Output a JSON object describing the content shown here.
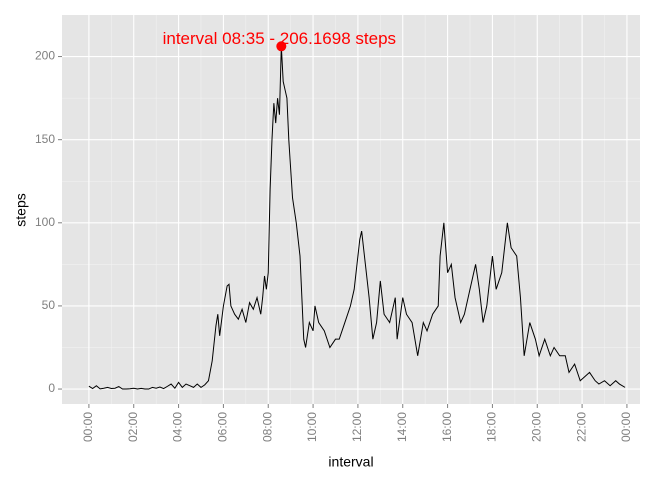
{
  "chart_data": {
    "type": "line",
    "x_label": "interval",
    "y_label": "steps",
    "x": [
      0,
      10,
      20,
      30,
      40,
      50,
      60,
      70,
      80,
      90,
      100,
      110,
      120,
      130,
      140,
      150,
      160,
      170,
      180,
      190,
      200,
      210,
      220,
      230,
      240,
      250,
      260,
      270,
      280,
      290,
      300,
      310,
      320,
      330,
      340,
      345,
      350,
      360,
      370,
      375,
      380,
      390,
      400,
      410,
      420,
      430,
      440,
      450,
      460,
      465,
      470,
      475,
      480,
      485,
      490,
      495,
      500,
      505,
      510,
      515,
      520,
      525,
      530,
      535,
      545,
      555,
      565,
      575,
      580,
      590,
      600,
      605,
      615,
      630,
      645,
      660,
      670,
      685,
      700,
      710,
      725,
      730,
      740,
      750,
      760,
      770,
      780,
      790,
      805,
      820,
      825,
      840,
      850,
      865,
      880,
      895,
      905,
      920,
      935,
      940,
      950,
      960,
      970,
      980,
      995,
      1005,
      1020,
      1035,
      1045,
      1055,
      1065,
      1080,
      1090,
      1105,
      1120,
      1130,
      1145,
      1155,
      1165,
      1180,
      1195,
      1205,
      1220,
      1235,
      1245,
      1260,
      1275,
      1285,
      1300,
      1315,
      1340,
      1355,
      1365,
      1380,
      1395,
      1410,
      1420,
      1435
    ],
    "values": [
      1.7,
      0.3,
      2,
      0.1,
      0.5,
      1,
      0.3,
      0.5,
      1.5,
      0,
      0,
      0.2,
      0.5,
      0,
      0.4,
      0,
      0,
      1,
      0.5,
      1.2,
      0.3,
      1.6,
      3,
      0.5,
      4,
      1,
      3,
      2,
      1,
      3,
      1,
      2.5,
      5,
      17,
      38,
      45,
      32,
      50,
      62,
      63,
      50,
      45,
      42,
      48,
      40,
      52,
      48,
      55,
      45,
      55,
      68,
      60,
      70,
      120,
      150,
      172,
      160,
      175,
      165,
      206.1698,
      185,
      180,
      175,
      150,
      115,
      100,
      80,
      30,
      25,
      40,
      35,
      50,
      40,
      35,
      25,
      30,
      30,
      40,
      50,
      60,
      90,
      95,
      75,
      55,
      30,
      40,
      65,
      45,
      40,
      55,
      30,
      55,
      45,
      40,
      20,
      40,
      35,
      45,
      50,
      80,
      100,
      70,
      75,
      55,
      40,
      45,
      60,
      75,
      60,
      40,
      50,
      80,
      60,
      70,
      100,
      85,
      80,
      55,
      20,
      40,
      30,
      20,
      30,
      20,
      25,
      20,
      20,
      10,
      15,
      5,
      10,
      5,
      3,
      5,
      2,
      5,
      3,
      1
    ],
    "color": "#000000",
    "annotation": {
      "text": "interval 08:35 - 206.1698 steps",
      "x": 515,
      "y": 206.1698,
      "color": "#ff0000"
    },
    "xlim": [
      -72,
      1475
    ],
    "ylim": [
      -9,
      225
    ],
    "xticks": [
      {
        "value": 0,
        "label": "00:00"
      },
      {
        "value": 120,
        "label": "02:00"
      },
      {
        "value": 240,
        "label": "04:00"
      },
      {
        "value": 360,
        "label": "06:00"
      },
      {
        "value": 480,
        "label": "08:00"
      },
      {
        "value": 600,
        "label": "10:00"
      },
      {
        "value": 720,
        "label": "12:00"
      },
      {
        "value": 840,
        "label": "14:00"
      },
      {
        "value": 960,
        "label": "16:00"
      },
      {
        "value": 1080,
        "label": "18:00"
      },
      {
        "value": 1200,
        "label": "20:00"
      },
      {
        "value": 1320,
        "label": "22:00"
      },
      {
        "value": 1440,
        "label": "00:00"
      }
    ],
    "yticks": [
      0,
      50,
      100,
      150,
      200
    ],
    "grid": true
  }
}
